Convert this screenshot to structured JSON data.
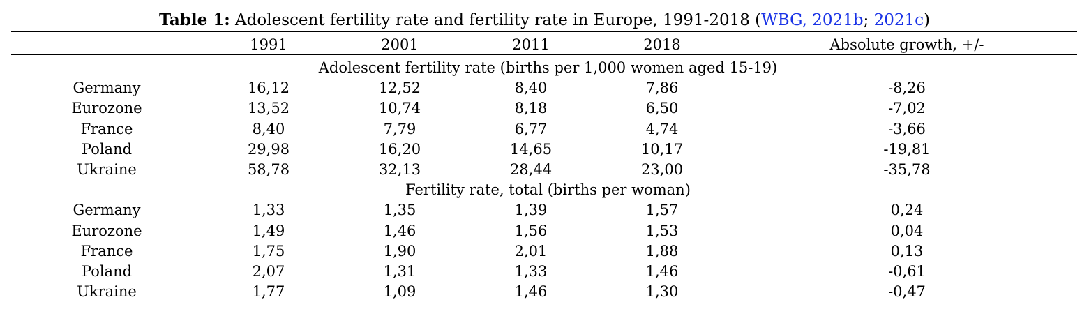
{
  "caption": {
    "label": "Table 1:",
    "text": " Adolescent fertility rate and fertility rate in Europe, 1991-2018 (",
    "cite1": "WBG, 2021b",
    "sep": "; ",
    "cite2": "2021c",
    "close": ")"
  },
  "columns": [
    "",
    "1991",
    "2001",
    "2011",
    "2018",
    "Absolute growth, +/-"
  ],
  "sections": [
    {
      "title": "Adolescent fertility rate (births per 1,000 women aged 15-19)",
      "rows": [
        {
          "country": "Germany",
          "v1991": "16,12",
          "v2001": "12,52",
          "v2011": "8,40",
          "v2018": "7,86",
          "growth": "-8,26"
        },
        {
          "country": "Eurozone",
          "v1991": "13,52",
          "v2001": "10,74",
          "v2011": "8,18",
          "v2018": "6,50",
          "growth": "-7,02"
        },
        {
          "country": "France",
          "v1991": "8,40",
          "v2001": "7,79",
          "v2011": "6,77",
          "v2018": "4,74",
          "growth": "-3,66"
        },
        {
          "country": "Poland",
          "v1991": "29,98",
          "v2001": "16,20",
          "v2011": "14,65",
          "v2018": "10,17",
          "growth": "-19,81"
        },
        {
          "country": "Ukraine",
          "v1991": "58,78",
          "v2001": "32,13",
          "v2011": "28,44",
          "v2018": "23,00",
          "growth": "-35,78"
        }
      ]
    },
    {
      "title": "Fertility rate, total (births per woman)",
      "rows": [
        {
          "country": "Germany",
          "v1991": "1,33",
          "v2001": "1,35",
          "v2011": "1,39",
          "v2018": "1,57",
          "growth": "0,24"
        },
        {
          "country": "Eurozone",
          "v1991": "1,49",
          "v2001": "1,46",
          "v2011": "1,56",
          "v2018": "1,53",
          "growth": "0,04"
        },
        {
          "country": "France",
          "v1991": "1,75",
          "v2001": "1,90",
          "v2011": "2,01",
          "v2018": "1,88",
          "growth": "0,13"
        },
        {
          "country": "Poland",
          "v1991": "2,07",
          "v2001": "1,31",
          "v2011": "1,33",
          "v2018": "1,46",
          "growth": "-0,61"
        },
        {
          "country": "Ukraine",
          "v1991": "1,77",
          "v2001": "1,09",
          "v2011": "1,46",
          "v2018": "1,30",
          "growth": "-0,47"
        }
      ]
    }
  ]
}
